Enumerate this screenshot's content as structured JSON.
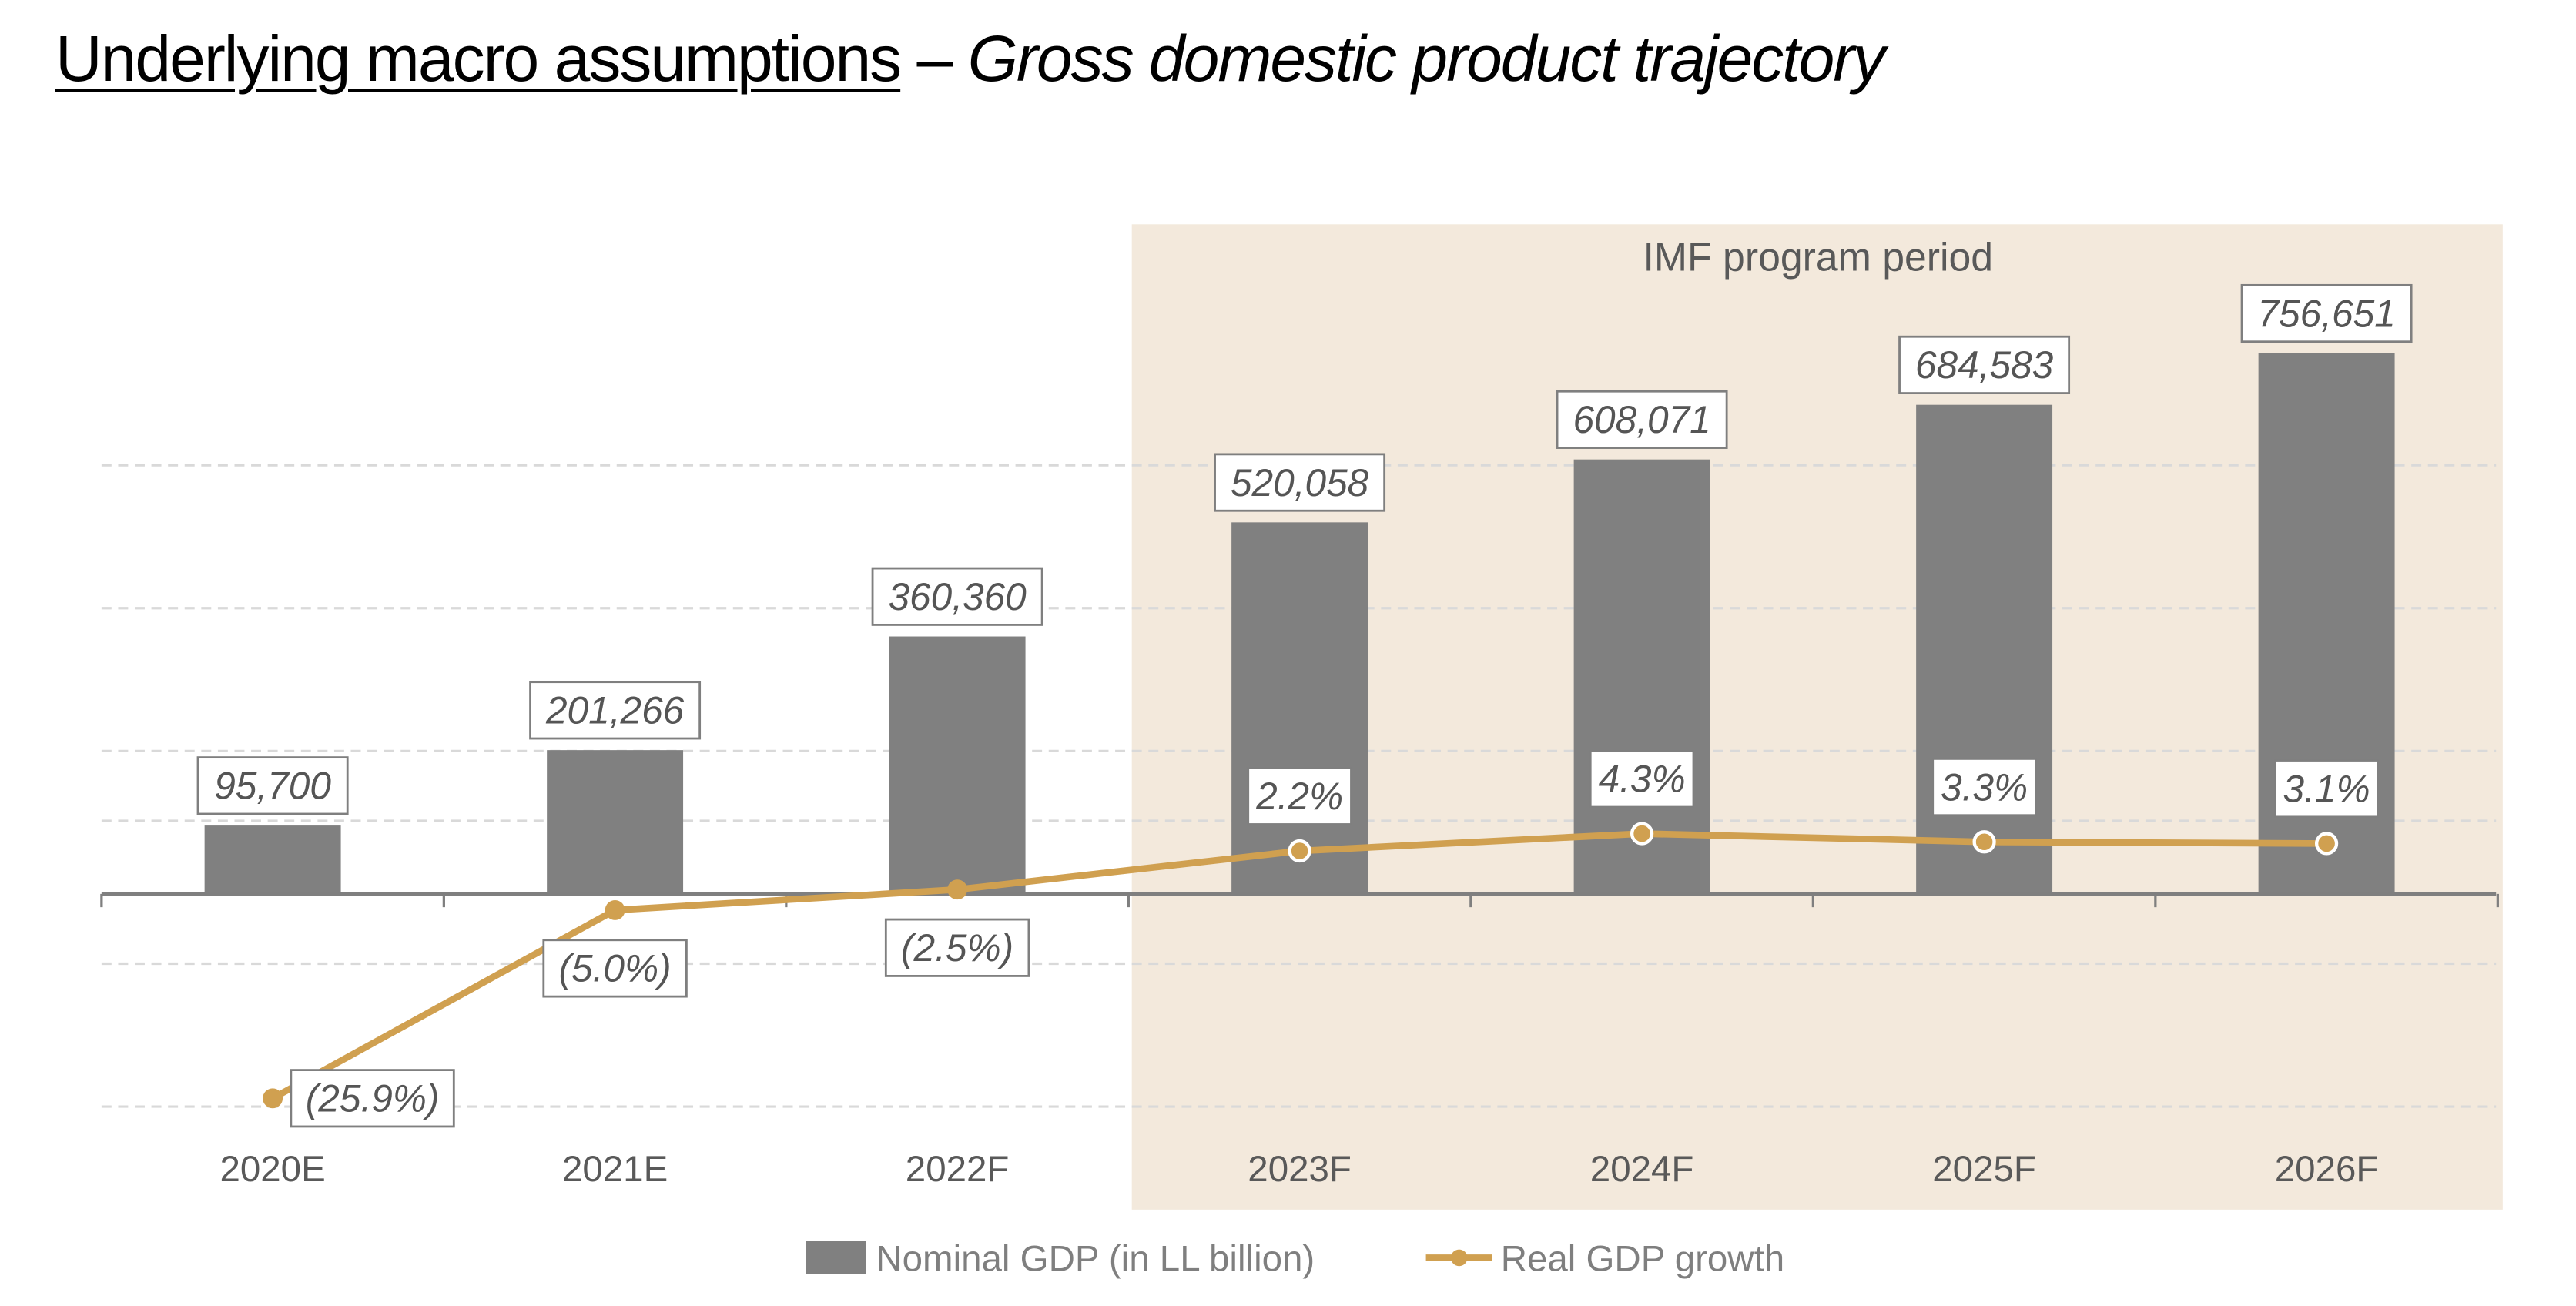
{
  "title": {
    "main": "Underlying macro assumptions",
    "dash": " – ",
    "sub": "Gross domestic product trajectory"
  },
  "chart_data": {
    "type": "bar+line",
    "categories": [
      "2020E",
      "2021E",
      "2022F",
      "2023F",
      "2024F",
      "2025F",
      "2026F"
    ],
    "series": [
      {
        "name": "Nominal GDP (in LL billion)",
        "type": "bar",
        "axis": "left",
        "color": "#808080",
        "values": [
          95700,
          201266,
          360360,
          520058,
          608071,
          684583,
          756651
        ],
        "labels": [
          "95,700",
          "201,266",
          "360,360",
          "520,058",
          "608,071",
          "684,583",
          "756,651"
        ]
      },
      {
        "name": "Real GDP growth",
        "type": "line",
        "axis": "right",
        "unit": "%",
        "color": "#D0A050",
        "values": [
          -25.9,
          -5.0,
          -2.5,
          2.2,
          4.3,
          3.3,
          3.1
        ],
        "labels": [
          "(25.9%)",
          "(5.0%)",
          "(2.5%)",
          "2.2%",
          "4.3%",
          "3.3%",
          "3.1%"
        ]
      }
    ],
    "left_ylim": [
      -300000,
      800000
    ],
    "highlight": {
      "label": "IMF program period",
      "from": "2023F",
      "to": "2026F",
      "color": "#F3E9DC"
    },
    "grid": true,
    "legend": "bottom-center"
  }
}
